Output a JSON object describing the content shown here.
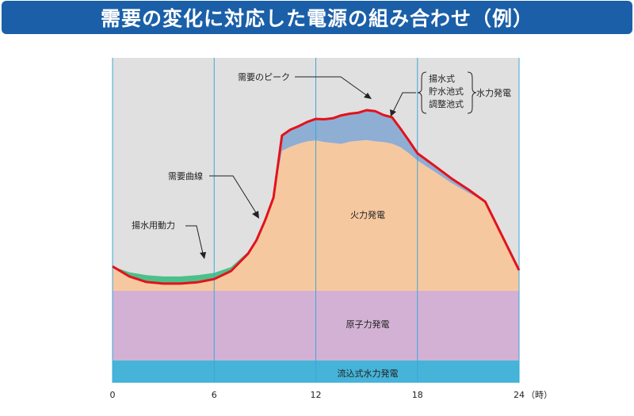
{
  "title": "需要の変化に対応した電源の組み合わせ（例）",
  "colors": {
    "title_bg": "#1a5fa8",
    "background": "#e0e0e0",
    "demand_curve": "#e3121b",
    "pumped_power": "#4cc08a",
    "peak_hydro": "#8eaed4",
    "thermal": "#f6c8a0",
    "nuclear": "#d3b1d4",
    "run_of_river": "#46b3d9",
    "gridline": "#3aa8d8"
  },
  "chart_data": {
    "type": "area",
    "xlim": [
      0,
      24
    ],
    "x_unit": "（時）",
    "x_ticks": [
      "0",
      "6",
      "12",
      "18",
      "24"
    ],
    "stack_bottom_to_top": [
      "流込式水力発電",
      "原子力発電",
      "火力発電",
      "揚水式 / 貯水池式 / 調整池式 水力発電"
    ],
    "curve_hours": [
      0,
      1,
      2,
      3,
      4,
      5,
      6,
      7,
      8,
      8.5,
      9,
      9.5,
      10,
      10.5,
      11,
      11.5,
      12,
      12.5,
      13,
      13.5,
      14,
      14.5,
      15,
      15.5,
      16,
      16.5,
      17,
      17.5,
      18,
      19,
      20,
      21,
      22,
      23,
      24
    ],
    "demand_curve": [
      35.8,
      32.7,
      31.0,
      30.5,
      30.5,
      30.9,
      31.9,
      34.4,
      39.7,
      43.9,
      49.9,
      57.0,
      76.1,
      77.9,
      79.0,
      80.3,
      81.2,
      81.1,
      81.4,
      82.3,
      82.8,
      83.1,
      83.9,
      83.6,
      82.4,
      81.7,
      78.2,
      74.5,
      70.6,
      66.8,
      62.9,
      59.5,
      55.7,
      45.2,
      34.6
    ],
    "base_without_pumping": [
      35.8,
      34.0,
      33.1,
      32.7,
      32.7,
      33.1,
      33.8,
      35.6,
      40.3,
      44.2,
      49.9,
      57.0,
      71.4,
      72.6,
      73.6,
      74.3,
      74.6,
      74.1,
      73.8,
      73.5,
      74.2,
      74.5,
      74.7,
      74.3,
      74.1,
      73.6,
      72.5,
      70.6,
      68.4,
      65.0,
      61.5,
      58.5,
      55.7,
      45.2,
      34.6
    ],
    "run_of_river_level": 6.9,
    "nuclear_level": 28.3,
    "labels": {
      "demand_curve": "需要曲線",
      "demand_peak": "需要のピーク",
      "pumping_power": "揚水用動力",
      "pumped_storage": "揚水式",
      "reservoir": "貯水池式",
      "pondage": "調整池式",
      "hydro_group": "水力発電",
      "thermal": "火力発電",
      "nuclear": "原子力発電",
      "run_of_river": "流込式水力発電"
    }
  }
}
